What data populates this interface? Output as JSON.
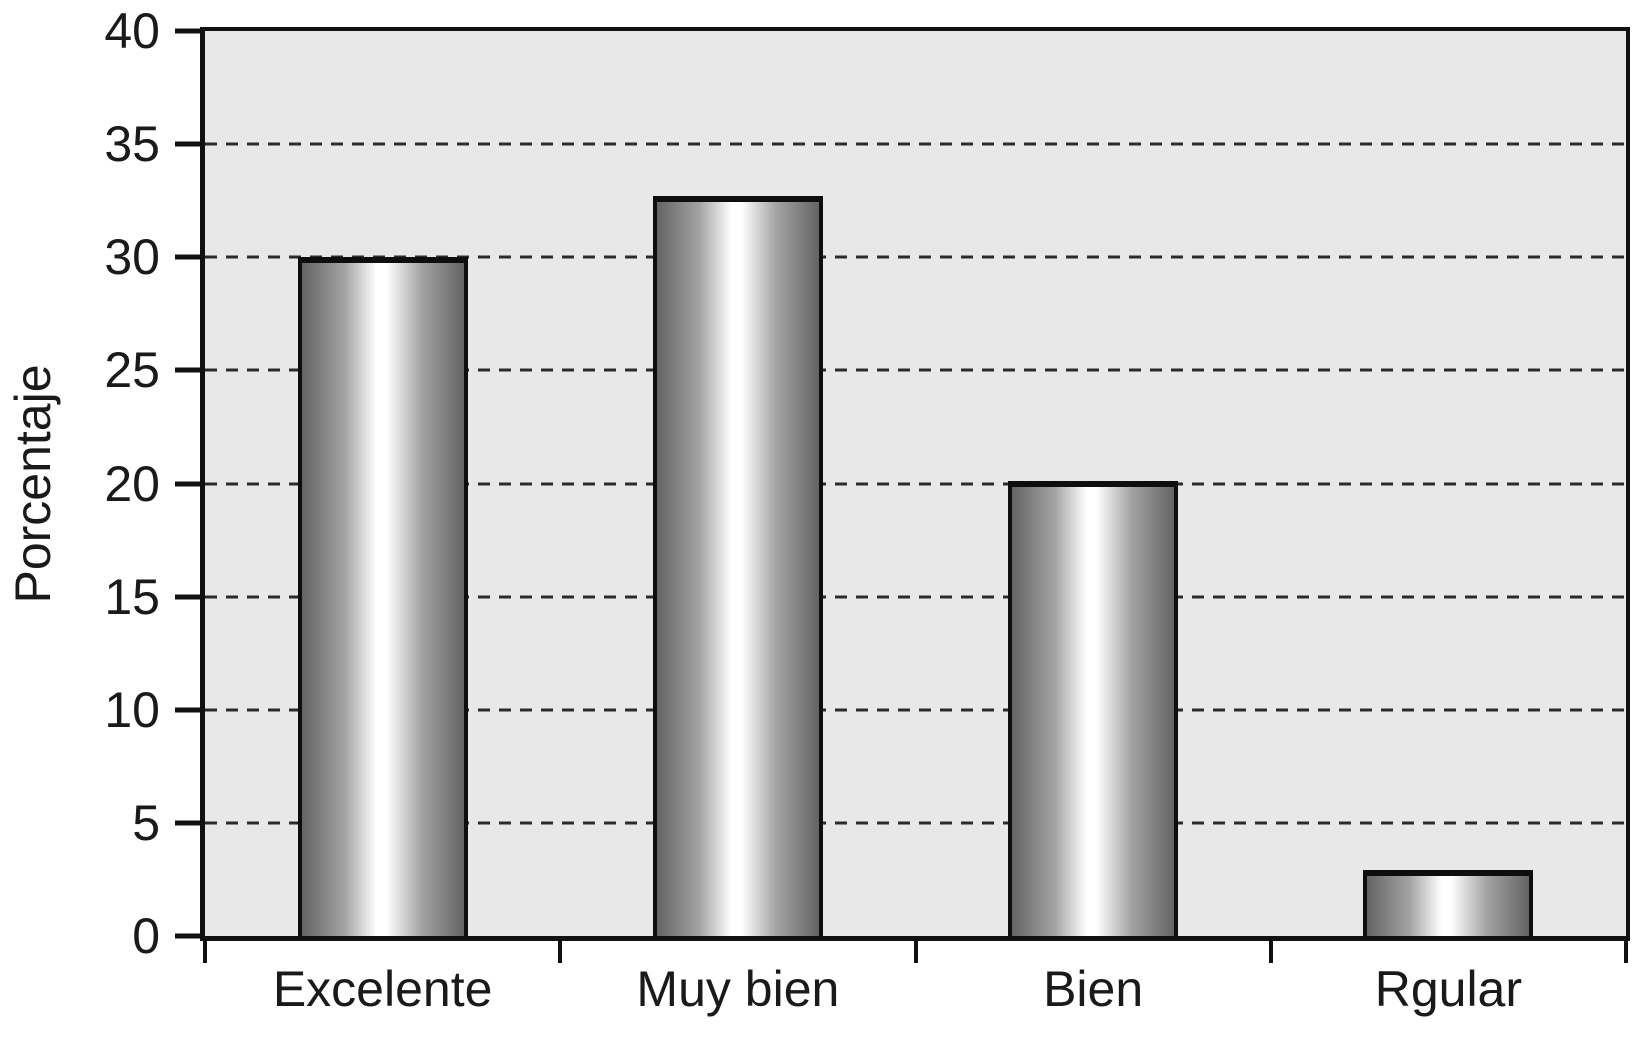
{
  "chart_data": {
    "type": "bar",
    "title": "",
    "xlabel": "",
    "ylabel": "Porcentaje",
    "categories": [
      "Excelente",
      "Muy bien",
      "Bien",
      "Rgular"
    ],
    "values": [
      30,
      32.7,
      20.1,
      2.9
    ],
    "ylim": [
      0,
      40
    ],
    "yticks": [
      0,
      5,
      10,
      15,
      20,
      25,
      30,
      35,
      40
    ],
    "gridlines": [
      5,
      10,
      15,
      20,
      25,
      30,
      35
    ],
    "grid_style": "dashed",
    "legend_position": "none",
    "bar_width_fraction": 0.478,
    "colors": {
      "plot_background": "#e8e8e8",
      "bar_edge": "#646464",
      "bar_quarter": "#a2a2a2",
      "bar_highlight": "#ffffff",
      "bar_border": "#0e0e0e",
      "axis_border": "#111111",
      "text": "#1a1a1a"
    }
  }
}
